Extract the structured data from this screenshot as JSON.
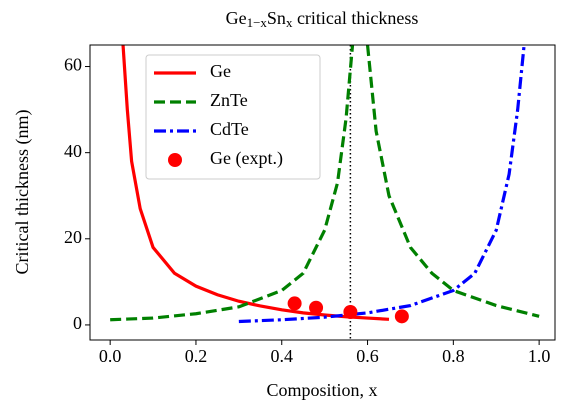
{
  "chart_data": {
    "type": "line",
    "title": [
      {
        "text": "Ge"
      },
      {
        "text": "1−x",
        "sub": true
      },
      {
        "text": "Sn"
      },
      {
        "text": "x",
        "sub": true
      },
      {
        "text": " critical thickness"
      }
    ],
    "xlabel": "Composition, x",
    "ylabel": "Critical thickness (nm)",
    "xlim": [
      -0.047,
      1.037
    ],
    "ylim": [
      -3.5,
      65
    ],
    "xticks": [
      {
        "value": 0,
        "label": "0.0"
      },
      0.2,
      0.4,
      0.6,
      0.8,
      {
        "value": 1,
        "label": "1.0"
      }
    ],
    "yticks": [
      0,
      20,
      40,
      60
    ],
    "vline": 0.56,
    "legend": "upper-left",
    "series": [
      {
        "name": "Ge",
        "type": "line",
        "style": "solid",
        "color": "#ff0000",
        "x": [
          0.03,
          0.04,
          0.05,
          0.07,
          0.1,
          0.15,
          0.2,
          0.25,
          0.3,
          0.35,
          0.4,
          0.45,
          0.5,
          0.55,
          0.6,
          0.65
        ],
        "values": [
          65,
          50,
          38,
          27,
          18,
          12,
          9,
          7,
          5.5,
          4.4,
          3.5,
          2.8,
          2.3,
          1.9,
          1.6,
          1.3
        ]
      },
      {
        "name": "ZnTe",
        "type": "line",
        "style": "dashed",
        "color": "#008000",
        "x": [
          0,
          0.1,
          0.2,
          0.3,
          0.4,
          0.45,
          0.5,
          0.53,
          0.55,
          0.565,
          0.58,
          0.6,
          0.62,
          0.65,
          0.7,
          0.75,
          0.8,
          0.9,
          1.0
        ],
        "values": [
          1.2,
          1.6,
          2.6,
          4.2,
          8,
          12,
          22,
          33,
          48,
          65,
          null,
          65,
          45,
          30,
          18,
          12,
          8,
          4.5,
          2
        ]
      },
      {
        "name": "CdTe",
        "type": "line",
        "style": "dashdot",
        "color": "#0000ff",
        "x": [
          0.3,
          0.4,
          0.5,
          0.6,
          0.7,
          0.8,
          0.85,
          0.9,
          0.93,
          0.95,
          0.965
        ],
        "values": [
          0.8,
          1.2,
          1.8,
          2.8,
          4.5,
          8,
          12,
          22,
          35,
          50,
          65
        ]
      },
      {
        "name": "Ge (expt.)",
        "type": "scatter",
        "color": "#ff0000",
        "x": [
          0.43,
          0.48,
          0.56,
          0.68
        ],
        "values": [
          5,
          4,
          3,
          2
        ]
      }
    ]
  }
}
